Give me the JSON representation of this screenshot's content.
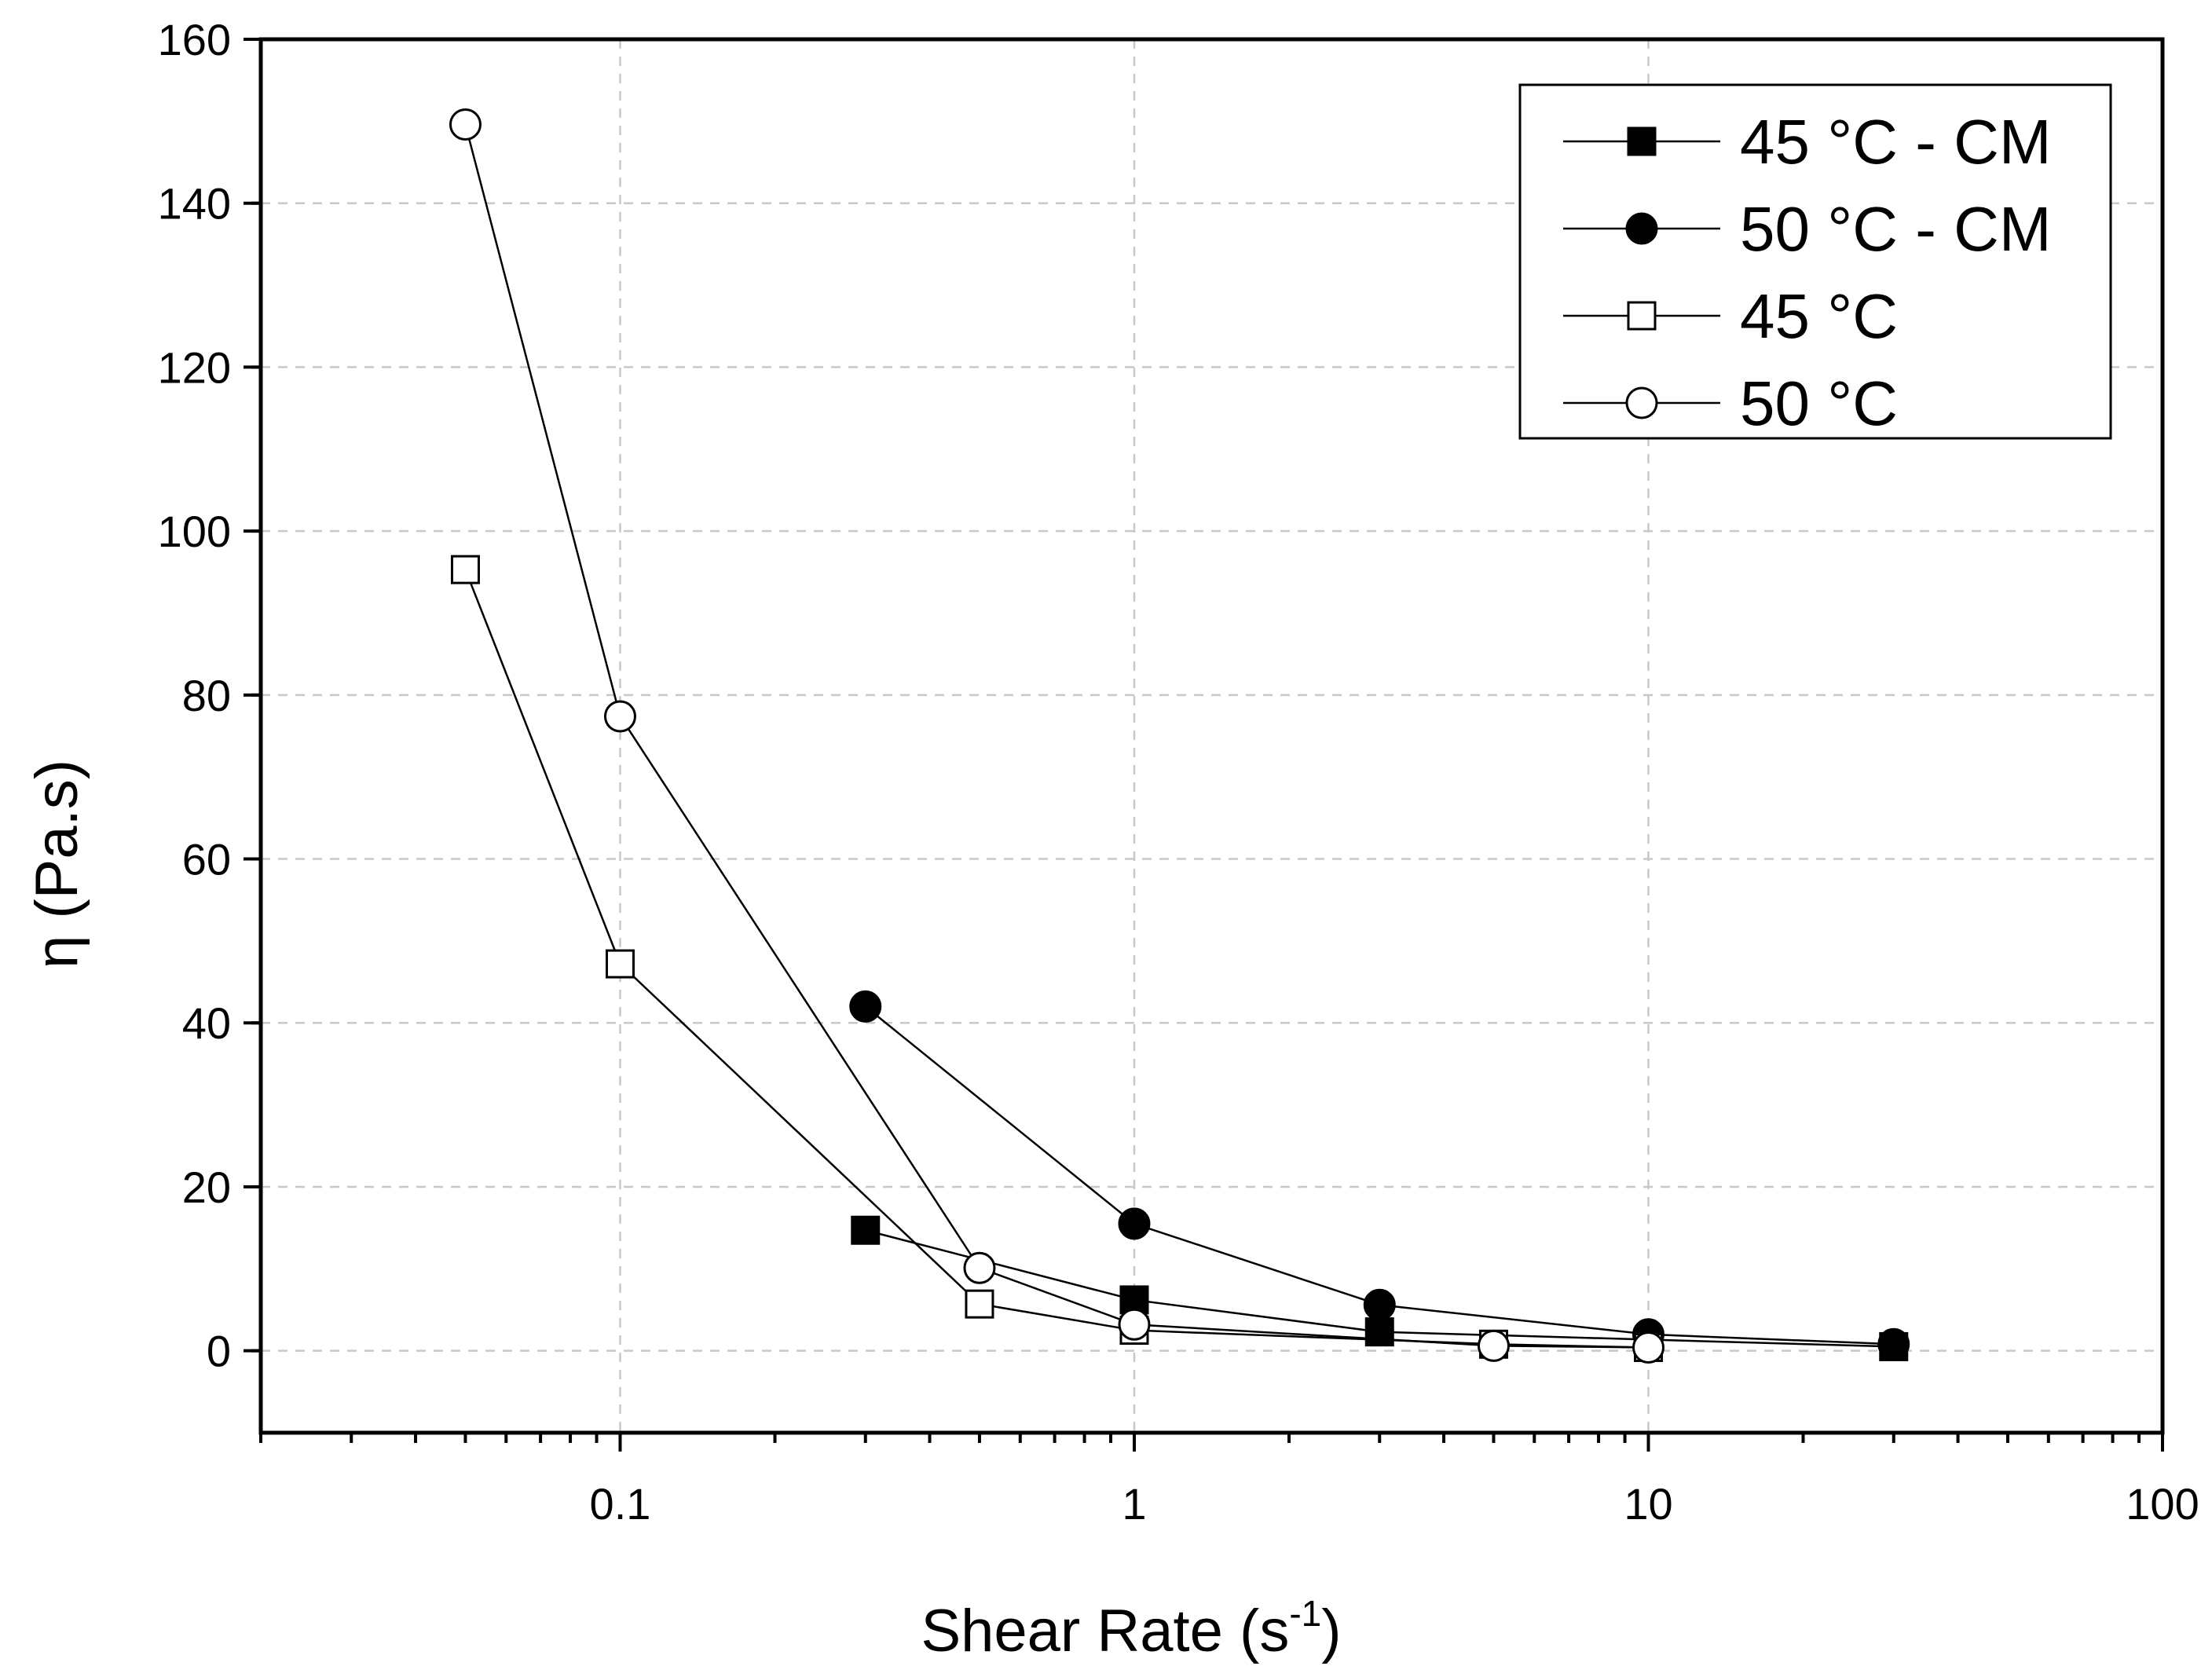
{
  "chart_data": {
    "type": "line",
    "title": "",
    "xlabel": "Shear Rate (s",
    "xlabel_sup": "-1",
    "xlabel_close": ")",
    "ylabel": "η (Pa.s)",
    "xscale": "log",
    "xlim": [
      0.02,
      100
    ],
    "ylim": [
      -10,
      160
    ],
    "x_ticks": [
      0.1,
      1,
      10,
      100
    ],
    "x_tick_labels": [
      "0.1",
      "1",
      "10",
      "100"
    ],
    "y_ticks": [
      0,
      20,
      40,
      60,
      80,
      100,
      120,
      140,
      160
    ],
    "y_tick_labels": [
      "0",
      "20",
      "40",
      "60",
      "80",
      "100",
      "120",
      "140",
      "160"
    ],
    "grid": true,
    "legend_position": "top-right",
    "series": [
      {
        "name": "45 °C - CM",
        "marker": "square-filled",
        "x": [
          0.3,
          1,
          3,
          30
        ],
        "y": [
          14.7,
          6.2,
          2.3,
          0.5
        ]
      },
      {
        "name": "50 °C - CM",
        "marker": "circle-filled",
        "x": [
          0.3,
          1,
          3,
          10,
          30
        ],
        "y": [
          42,
          15.5,
          5.6,
          2,
          0.8
        ]
      },
      {
        "name": "45 °C",
        "marker": "square-open",
        "x": [
          0.05,
          0.1,
          0.5,
          1,
          5,
          10
        ],
        "y": [
          95.3,
          47.2,
          5.7,
          2.5,
          0.8,
          0.4
        ]
      },
      {
        "name": "50 °C",
        "marker": "circle-open",
        "x": [
          0.05,
          0.1,
          0.5,
          1,
          5,
          10
        ],
        "y": [
          149.6,
          77.4,
          10.1,
          3.2,
          0.6,
          0.4
        ]
      }
    ]
  }
}
